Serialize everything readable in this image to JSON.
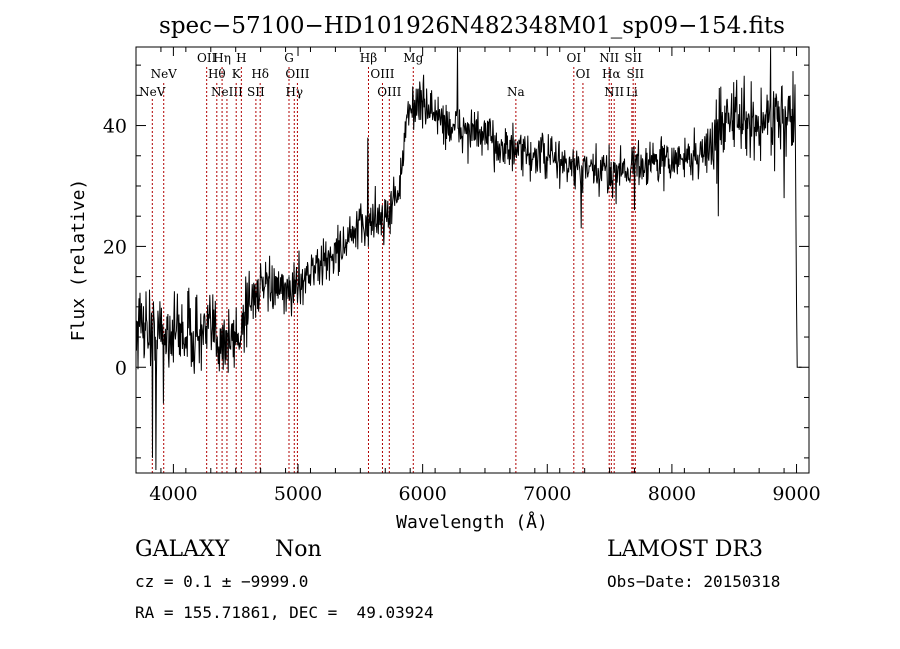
{
  "colors": {
    "spectrum": "#000000",
    "lines": "#b00000",
    "axis": "#000000"
  },
  "chart_data": {
    "type": "line",
    "title": "spec−57100−HD101926N482348M01_sp09−154.fits",
    "xlabel": "Wavelength (Å)",
    "ylabel": "Flux (relative)",
    "xlim": [
      3700,
      9100
    ],
    "ylim": [
      -17.5,
      53
    ],
    "xticks": [
      4000,
      5000,
      6000,
      7000,
      8000,
      9000
    ],
    "xtick_labels": [
      "4000",
      "5000",
      "6000",
      "7000",
      "8000",
      "9000"
    ],
    "yticks": [
      0,
      20,
      40
    ],
    "ytick_labels": [
      "0",
      "20",
      "40"
    ],
    "anchors": [
      [
        3700,
        6
      ],
      [
        3760,
        8
      ],
      [
        3850,
        5
      ],
      [
        3950,
        6
      ],
      [
        4100,
        6
      ],
      [
        4250,
        5
      ],
      [
        4320,
        6
      ],
      [
        4450,
        4
      ],
      [
        4520,
        5
      ],
      [
        4600,
        11
      ],
      [
        4700,
        13
      ],
      [
        4800,
        13
      ],
      [
        4900,
        12
      ],
      [
        5000,
        14
      ],
      [
        5100,
        16
      ],
      [
        5200,
        17
      ],
      [
        5300,
        19
      ],
      [
        5400,
        21
      ],
      [
        5500,
        23
      ],
      [
        5600,
        24
      ],
      [
        5700,
        25
      ],
      [
        5800,
        29
      ],
      [
        5850,
        35
      ],
      [
        5880,
        42
      ],
      [
        5950,
        44
      ],
      [
        6050,
        43
      ],
      [
        6200,
        40
      ],
      [
        6400,
        39
      ],
      [
        6600,
        37
      ],
      [
        6800,
        35
      ],
      [
        7000,
        35
      ],
      [
        7200,
        33
      ],
      [
        7400,
        32
      ],
      [
        7600,
        33
      ],
      [
        7800,
        34
      ],
      [
        8000,
        34
      ],
      [
        8200,
        35
      ],
      [
        8350,
        37
      ],
      [
        8450,
        43
      ],
      [
        8500,
        41
      ],
      [
        8700,
        40
      ],
      [
        8850,
        42
      ],
      [
        8990,
        40
      ]
    ],
    "spikes": [
      [
        3860,
        -17
      ],
      [
        3830,
        -15
      ],
      [
        3920,
        -6
      ],
      [
        5560,
        38
      ],
      [
        5620,
        30
      ],
      [
        5740,
        22
      ],
      [
        6280,
        57
      ],
      [
        7270,
        23
      ],
      [
        7550,
        27
      ],
      [
        7700,
        26
      ],
      [
        8370,
        25
      ],
      [
        8790,
        56
      ],
      [
        8900,
        28
      ],
      [
        8600,
        35
      ]
    ],
    "noise_sigma": 2.6,
    "end_segment": [
      [
        9000,
        11
      ],
      [
        9005,
        0
      ],
      [
        9040,
        0
      ]
    ],
    "emission_lines": [
      {
        "wl": 3426,
        "label": "NeV",
        "row": 2
      },
      {
        "wl": 3346,
        "label": "NeV",
        "row": 3
      },
      {
        "wl": 3727,
        "label": "OII",
        "row": 1
      },
      {
        "wl": 3798,
        "label": "Hθ",
        "row": 2
      },
      {
        "wl": 3835,
        "label": "Hη",
        "row": 1
      },
      {
        "wl": 3869,
        "label": "NeIII",
        "row": 3
      },
      {
        "wl": 3934,
        "label": "K",
        "row": 2
      },
      {
        "wl": 3970,
        "label": "H",
        "row": 1
      },
      {
        "wl": 4102,
        "label": "Hδ",
        "row": 2
      },
      {
        "wl": 4072,
        "label": "SII",
        "row": 3
      },
      {
        "wl": 4304,
        "label": "G",
        "row": 1
      },
      {
        "wl": 4363,
        "label": "OIII",
        "row": 2
      },
      {
        "wl": 4341,
        "label": "Hγ",
        "row": 3
      },
      {
        "wl": 4861,
        "label": "Hβ",
        "row": 1
      },
      {
        "wl": 4959,
        "label": "OIII",
        "row": 2
      },
      {
        "wl": 5007,
        "label": "OIII",
        "row": 3
      },
      {
        "wl": 5175,
        "label": "Mg",
        "row": 1
      },
      {
        "wl": 5894,
        "label": "Na",
        "row": 3
      },
      {
        "wl": 6300,
        "label": "OI",
        "row": 1
      },
      {
        "wl": 6364,
        "label": "OI",
        "row": 2
      },
      {
        "wl": 6548,
        "label": "NII",
        "row": 1
      },
      {
        "wl": 6563,
        "label": "Hα",
        "row": 2
      },
      {
        "wl": 6583,
        "label": "NII",
        "row": 3
      },
      {
        "wl": 6716,
        "label": "SII",
        "row": 1
      },
      {
        "wl": 6731,
        "label": "SII",
        "row": 2
      },
      {
        "wl": 6707,
        "label": "Li",
        "row": 3
      }
    ],
    "redshift_scale": 1.1449
  },
  "info": {
    "class": "GALAXY",
    "subclass": "Non",
    "cz": "cz = 0.1 ± −9999.0",
    "coords": "RA = 155.71861, DEC =  49.03924",
    "survey": "LAMOST DR3",
    "obs_date": "Obs−Date: 20150318"
  }
}
